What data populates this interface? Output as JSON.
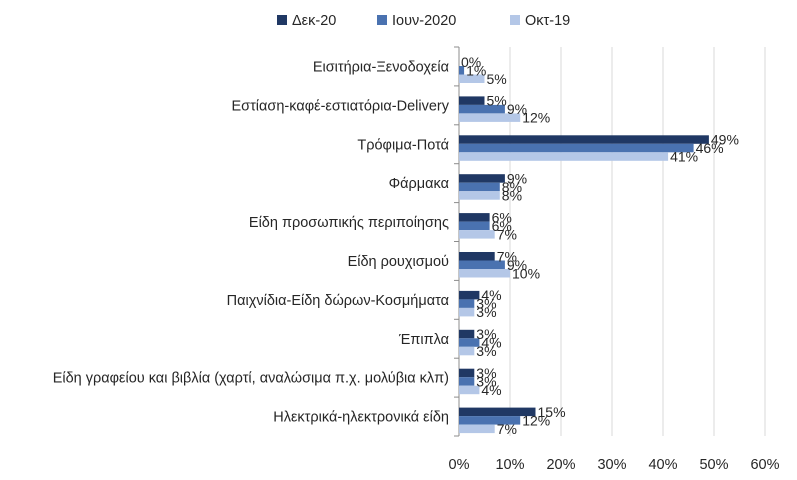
{
  "chart_data": {
    "type": "bar",
    "orientation": "horizontal",
    "categories": [
      "Εισιτήρια-Ξενοδοχεία",
      "Εστίαση-καφέ-εστιατόρια-Delivery",
      "Τρόφιμα-Ποτά",
      "Φάρμακα",
      "Είδη προσωπικής περιποίησης",
      "Είδη ρουχισμού",
      "Παιχνίδια-Είδη δώρων-Κοσμήματα",
      "Έπιπλα",
      "Είδη γραφείου και βιβλία (χαρτί, αναλώσιμα π.χ. μολύβια κλπ)",
      "Ηλεκτρικά-ηλεκτρονικά είδη"
    ],
    "series": [
      {
        "name": "Δεκ-20",
        "color": "#203864",
        "values": [
          0,
          5,
          49,
          9,
          6,
          7,
          4,
          3,
          3,
          15
        ]
      },
      {
        "name": "Ιουν-2020",
        "color": "#4a72b0",
        "values": [
          1,
          9,
          46,
          8,
          6,
          9,
          3,
          4,
          3,
          12
        ]
      },
      {
        "name": "Οκτ-19",
        "color": "#b4c7e7",
        "values": [
          5,
          12,
          41,
          8,
          7,
          10,
          3,
          3,
          4,
          7
        ]
      }
    ],
    "value_suffix": "%",
    "xlim": [
      0,
      60
    ],
    "x_ticks": [
      0,
      10,
      20,
      30,
      40,
      50,
      60
    ],
    "x_tick_labels": [
      "0%",
      "10%",
      "20%",
      "30%",
      "40%",
      "50%",
      "60%"
    ],
    "grid": true,
    "legend_position": "top",
    "title": "",
    "xlabel": "",
    "ylabel": ""
  }
}
